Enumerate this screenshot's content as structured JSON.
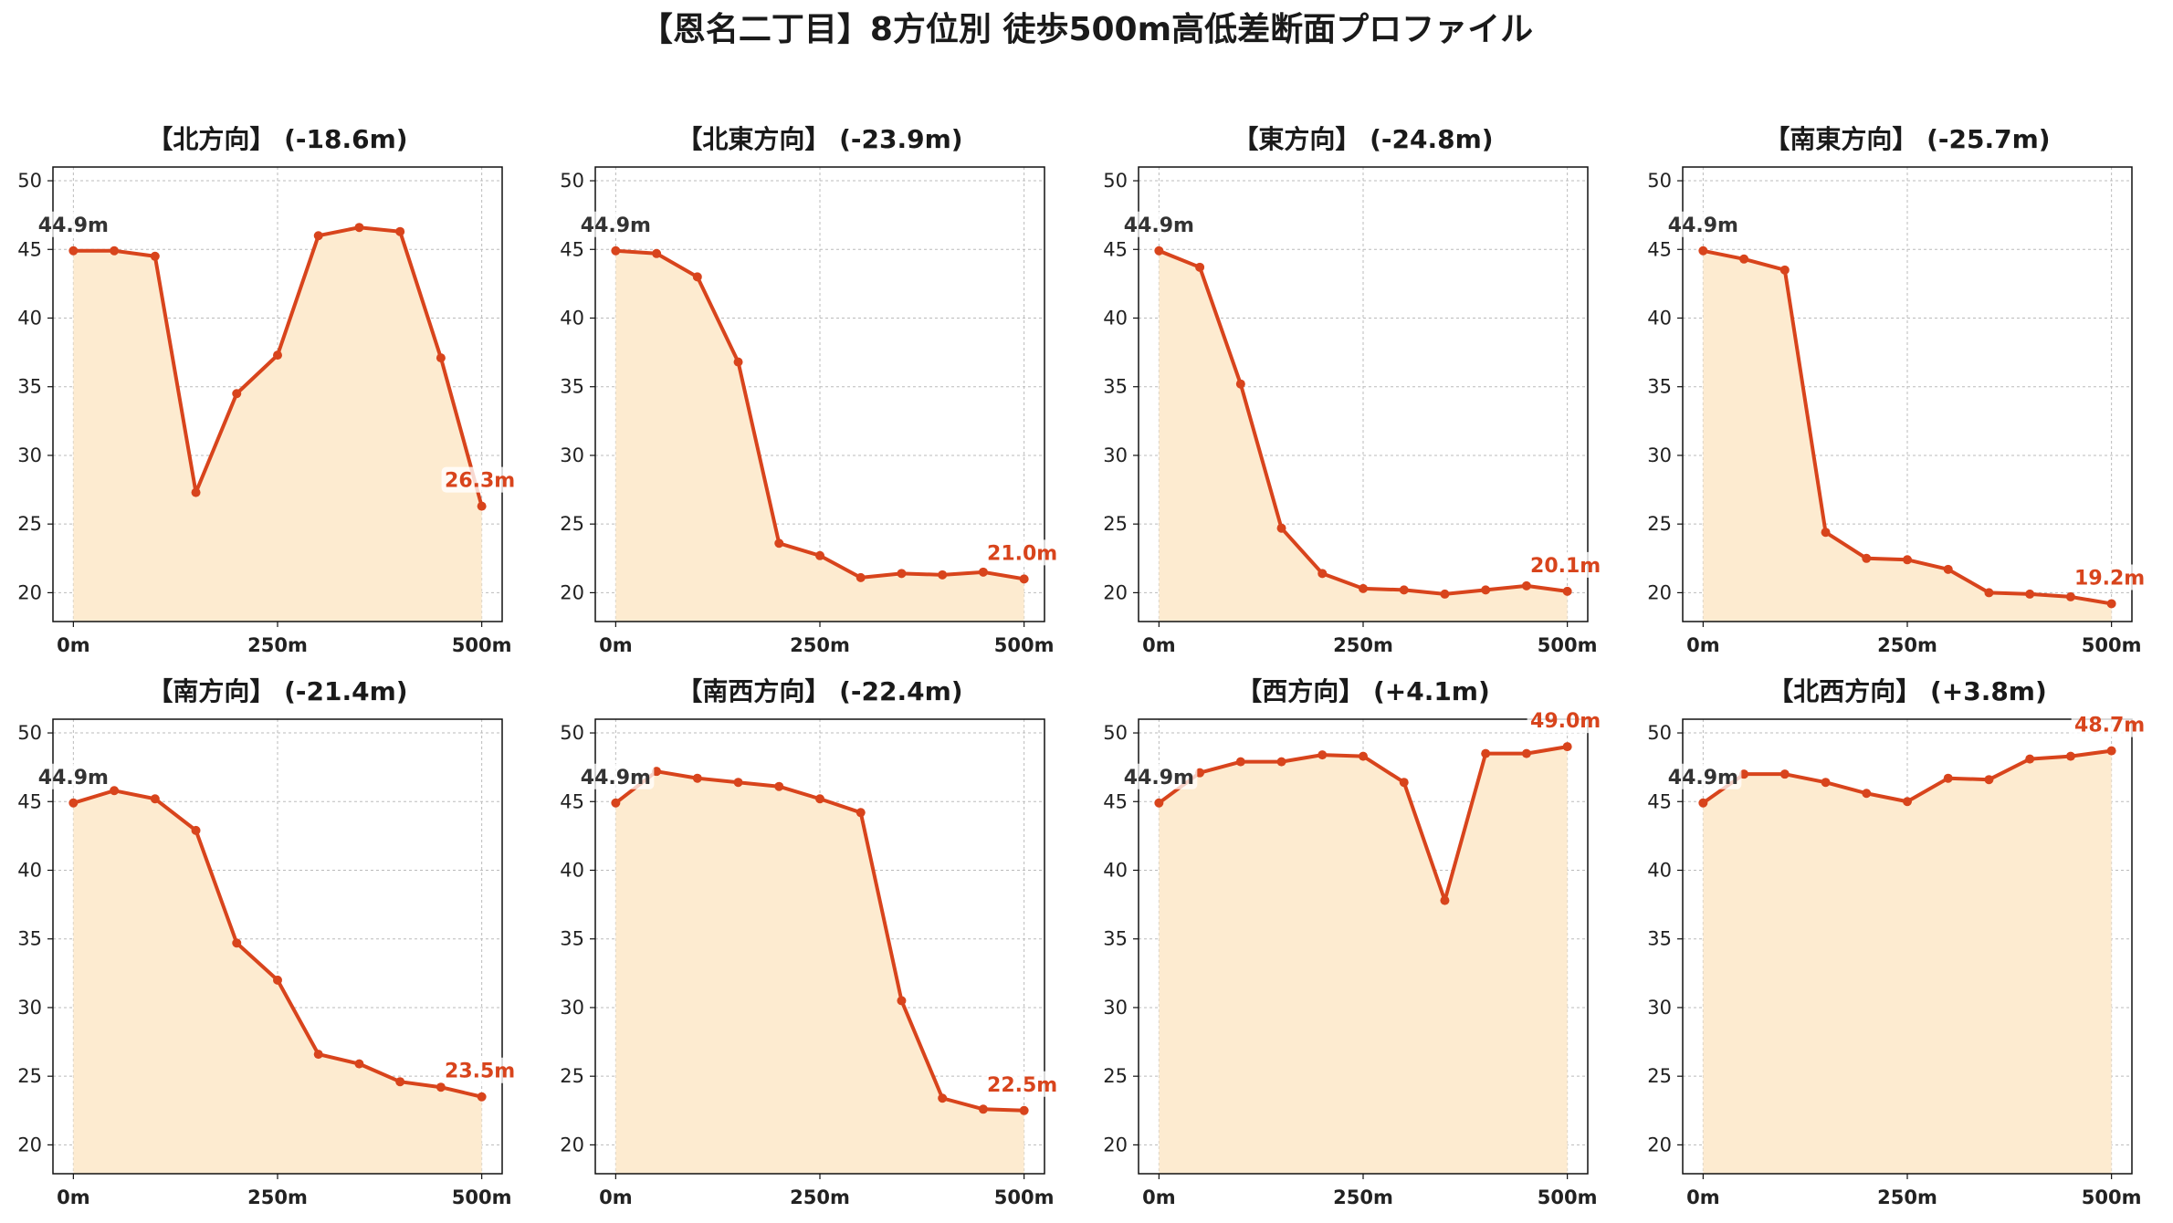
{
  "title": "【恩名二丁目】8方位別 徒歩500m高低差断面プロファイル",
  "colors": {
    "line": "#d8441c",
    "fill": "#fdebd0",
    "grid": "#bbbbbb",
    "start_label": "#333333",
    "end_label": "#d8441c"
  },
  "chart_data": [
    {
      "type": "area",
      "title": "【北方向】 (-18.6m)",
      "x": [
        0,
        50,
        100,
        150,
        200,
        250,
        300,
        350,
        400,
        450,
        500
      ],
      "y": [
        44.9,
        44.9,
        44.5,
        27.3,
        34.5,
        37.3,
        46.0,
        46.6,
        46.3,
        37.1,
        26.3
      ],
      "xticks": [
        "0m",
        "250m",
        "500m"
      ],
      "yticks": [
        20,
        25,
        30,
        35,
        40,
        45,
        50
      ],
      "ylim": [
        17.9,
        51
      ],
      "start_label": "44.9m",
      "end_label": "26.3m"
    },
    {
      "type": "area",
      "title": "【北東方向】 (-23.9m)",
      "x": [
        0,
        50,
        100,
        150,
        200,
        250,
        300,
        350,
        400,
        450,
        500
      ],
      "y": [
        44.9,
        44.7,
        43.0,
        36.8,
        23.6,
        22.7,
        21.1,
        21.4,
        21.3,
        21.5,
        21.0
      ],
      "xticks": [
        "0m",
        "250m",
        "500m"
      ],
      "yticks": [
        20,
        25,
        30,
        35,
        40,
        45,
        50
      ],
      "ylim": [
        17.9,
        51
      ],
      "start_label": "44.9m",
      "end_label": "21.0m"
    },
    {
      "type": "area",
      "title": "【東方向】 (-24.8m)",
      "x": [
        0,
        50,
        100,
        150,
        200,
        250,
        300,
        350,
        400,
        450,
        500
      ],
      "y": [
        44.9,
        43.7,
        35.2,
        24.7,
        21.4,
        20.3,
        20.2,
        19.9,
        20.2,
        20.5,
        20.1
      ],
      "xticks": [
        "0m",
        "250m",
        "500m"
      ],
      "yticks": [
        20,
        25,
        30,
        35,
        40,
        45,
        50
      ],
      "ylim": [
        17.9,
        51
      ],
      "start_label": "44.9m",
      "end_label": "20.1m"
    },
    {
      "type": "area",
      "title": "【南東方向】 (-25.7m)",
      "x": [
        0,
        50,
        100,
        150,
        200,
        250,
        300,
        350,
        400,
        450,
        500
      ],
      "y": [
        44.9,
        44.3,
        43.5,
        24.4,
        22.5,
        22.4,
        21.7,
        20.0,
        19.9,
        19.7,
        19.2
      ],
      "xticks": [
        "0m",
        "250m",
        "500m"
      ],
      "yticks": [
        20,
        25,
        30,
        35,
        40,
        45,
        50
      ],
      "ylim": [
        17.9,
        51
      ],
      "start_label": "44.9m",
      "end_label": "19.2m"
    },
    {
      "type": "area",
      "title": "【南方向】 (-21.4m)",
      "x": [
        0,
        50,
        100,
        150,
        200,
        250,
        300,
        350,
        400,
        450,
        500
      ],
      "y": [
        44.9,
        45.8,
        45.2,
        42.9,
        34.7,
        32.0,
        26.6,
        25.9,
        24.6,
        24.2,
        23.5
      ],
      "xticks": [
        "0m",
        "250m",
        "500m"
      ],
      "yticks": [
        20,
        25,
        30,
        35,
        40,
        45,
        50
      ],
      "ylim": [
        17.9,
        51
      ],
      "start_label": "44.9m",
      "end_label": "23.5m"
    },
    {
      "type": "area",
      "title": "【南西方向】 (-22.4m)",
      "x": [
        0,
        50,
        100,
        150,
        200,
        250,
        300,
        350,
        400,
        450,
        500
      ],
      "y": [
        44.9,
        47.2,
        46.7,
        46.4,
        46.1,
        45.2,
        44.2,
        30.5,
        23.4,
        22.6,
        22.5
      ],
      "xticks": [
        "0m",
        "250m",
        "500m"
      ],
      "yticks": [
        20,
        25,
        30,
        35,
        40,
        45,
        50
      ],
      "ylim": [
        17.9,
        51
      ],
      "start_label": "44.9m",
      "end_label": "22.5m"
    },
    {
      "type": "area",
      "title": "【西方向】 (+4.1m)",
      "x": [
        0,
        50,
        100,
        150,
        200,
        250,
        300,
        350,
        400,
        450,
        500
      ],
      "y": [
        44.9,
        47.1,
        47.9,
        47.9,
        48.4,
        48.3,
        46.4,
        37.8,
        48.5,
        48.5,
        49.0
      ],
      "xticks": [
        "0m",
        "250m",
        "500m"
      ],
      "yticks": [
        20,
        25,
        30,
        35,
        40,
        45,
        50
      ],
      "ylim": [
        17.9,
        51
      ],
      "start_label": "44.9m",
      "end_label": "49.0m"
    },
    {
      "type": "area",
      "title": "【北西方向】 (+3.8m)",
      "x": [
        0,
        50,
        100,
        150,
        200,
        250,
        300,
        350,
        400,
        450,
        500
      ],
      "y": [
        44.9,
        47.0,
        47.0,
        46.4,
        45.6,
        45.0,
        46.7,
        46.6,
        48.1,
        48.3,
        48.7
      ],
      "xticks": [
        "0m",
        "250m",
        "500m"
      ],
      "yticks": [
        20,
        25,
        30,
        35,
        40,
        45,
        50
      ],
      "ylim": [
        17.9,
        51
      ],
      "start_label": "44.9m",
      "end_label": "48.7m"
    }
  ]
}
